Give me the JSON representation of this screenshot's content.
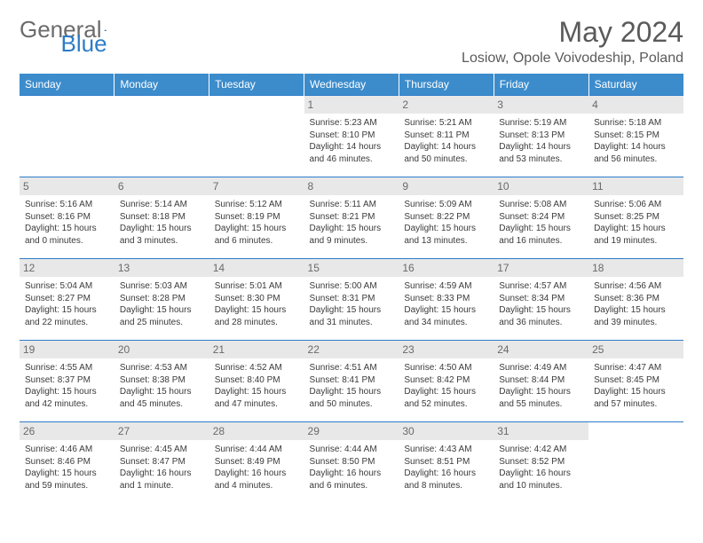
{
  "logo": {
    "part1": "General",
    "part2": "Blue"
  },
  "header": {
    "month_title": "May 2024",
    "location": "Losiow, Opole Voivodeship, Poland"
  },
  "styling": {
    "header_bg": "#3c8ccc",
    "header_text": "#ffffff",
    "border_color": "#2d7cc9",
    "daynum_bg": "#e8e8e8",
    "daynum_color": "#6a6a6a",
    "body_text": "#3a3a3a",
    "title_color": "#5a5a5a",
    "cell_fontsize": 10,
    "header_fontsize": 12,
    "title_fontsize": 32,
    "location_fontsize": 16
  },
  "weekdays": [
    "Sunday",
    "Monday",
    "Tuesday",
    "Wednesday",
    "Thursday",
    "Friday",
    "Saturday"
  ],
  "weeks": [
    [
      {
        "n": "",
        "sr": "",
        "ss": "",
        "dl": ""
      },
      {
        "n": "",
        "sr": "",
        "ss": "",
        "dl": ""
      },
      {
        "n": "",
        "sr": "",
        "ss": "",
        "dl": ""
      },
      {
        "n": "1",
        "sr": "Sunrise: 5:23 AM",
        "ss": "Sunset: 8:10 PM",
        "dl": "Daylight: 14 hours and 46 minutes."
      },
      {
        "n": "2",
        "sr": "Sunrise: 5:21 AM",
        "ss": "Sunset: 8:11 PM",
        "dl": "Daylight: 14 hours and 50 minutes."
      },
      {
        "n": "3",
        "sr": "Sunrise: 5:19 AM",
        "ss": "Sunset: 8:13 PM",
        "dl": "Daylight: 14 hours and 53 minutes."
      },
      {
        "n": "4",
        "sr": "Sunrise: 5:18 AM",
        "ss": "Sunset: 8:15 PM",
        "dl": "Daylight: 14 hours and 56 minutes."
      }
    ],
    [
      {
        "n": "5",
        "sr": "Sunrise: 5:16 AM",
        "ss": "Sunset: 8:16 PM",
        "dl": "Daylight: 15 hours and 0 minutes."
      },
      {
        "n": "6",
        "sr": "Sunrise: 5:14 AM",
        "ss": "Sunset: 8:18 PM",
        "dl": "Daylight: 15 hours and 3 minutes."
      },
      {
        "n": "7",
        "sr": "Sunrise: 5:12 AM",
        "ss": "Sunset: 8:19 PM",
        "dl": "Daylight: 15 hours and 6 minutes."
      },
      {
        "n": "8",
        "sr": "Sunrise: 5:11 AM",
        "ss": "Sunset: 8:21 PM",
        "dl": "Daylight: 15 hours and 9 minutes."
      },
      {
        "n": "9",
        "sr": "Sunrise: 5:09 AM",
        "ss": "Sunset: 8:22 PM",
        "dl": "Daylight: 15 hours and 13 minutes."
      },
      {
        "n": "10",
        "sr": "Sunrise: 5:08 AM",
        "ss": "Sunset: 8:24 PM",
        "dl": "Daylight: 15 hours and 16 minutes."
      },
      {
        "n": "11",
        "sr": "Sunrise: 5:06 AM",
        "ss": "Sunset: 8:25 PM",
        "dl": "Daylight: 15 hours and 19 minutes."
      }
    ],
    [
      {
        "n": "12",
        "sr": "Sunrise: 5:04 AM",
        "ss": "Sunset: 8:27 PM",
        "dl": "Daylight: 15 hours and 22 minutes."
      },
      {
        "n": "13",
        "sr": "Sunrise: 5:03 AM",
        "ss": "Sunset: 8:28 PM",
        "dl": "Daylight: 15 hours and 25 minutes."
      },
      {
        "n": "14",
        "sr": "Sunrise: 5:01 AM",
        "ss": "Sunset: 8:30 PM",
        "dl": "Daylight: 15 hours and 28 minutes."
      },
      {
        "n": "15",
        "sr": "Sunrise: 5:00 AM",
        "ss": "Sunset: 8:31 PM",
        "dl": "Daylight: 15 hours and 31 minutes."
      },
      {
        "n": "16",
        "sr": "Sunrise: 4:59 AM",
        "ss": "Sunset: 8:33 PM",
        "dl": "Daylight: 15 hours and 34 minutes."
      },
      {
        "n": "17",
        "sr": "Sunrise: 4:57 AM",
        "ss": "Sunset: 8:34 PM",
        "dl": "Daylight: 15 hours and 36 minutes."
      },
      {
        "n": "18",
        "sr": "Sunrise: 4:56 AM",
        "ss": "Sunset: 8:36 PM",
        "dl": "Daylight: 15 hours and 39 minutes."
      }
    ],
    [
      {
        "n": "19",
        "sr": "Sunrise: 4:55 AM",
        "ss": "Sunset: 8:37 PM",
        "dl": "Daylight: 15 hours and 42 minutes."
      },
      {
        "n": "20",
        "sr": "Sunrise: 4:53 AM",
        "ss": "Sunset: 8:38 PM",
        "dl": "Daylight: 15 hours and 45 minutes."
      },
      {
        "n": "21",
        "sr": "Sunrise: 4:52 AM",
        "ss": "Sunset: 8:40 PM",
        "dl": "Daylight: 15 hours and 47 minutes."
      },
      {
        "n": "22",
        "sr": "Sunrise: 4:51 AM",
        "ss": "Sunset: 8:41 PM",
        "dl": "Daylight: 15 hours and 50 minutes."
      },
      {
        "n": "23",
        "sr": "Sunrise: 4:50 AM",
        "ss": "Sunset: 8:42 PM",
        "dl": "Daylight: 15 hours and 52 minutes."
      },
      {
        "n": "24",
        "sr": "Sunrise: 4:49 AM",
        "ss": "Sunset: 8:44 PM",
        "dl": "Daylight: 15 hours and 55 minutes."
      },
      {
        "n": "25",
        "sr": "Sunrise: 4:47 AM",
        "ss": "Sunset: 8:45 PM",
        "dl": "Daylight: 15 hours and 57 minutes."
      }
    ],
    [
      {
        "n": "26",
        "sr": "Sunrise: 4:46 AM",
        "ss": "Sunset: 8:46 PM",
        "dl": "Daylight: 15 hours and 59 minutes."
      },
      {
        "n": "27",
        "sr": "Sunrise: 4:45 AM",
        "ss": "Sunset: 8:47 PM",
        "dl": "Daylight: 16 hours and 1 minute."
      },
      {
        "n": "28",
        "sr": "Sunrise: 4:44 AM",
        "ss": "Sunset: 8:49 PM",
        "dl": "Daylight: 16 hours and 4 minutes."
      },
      {
        "n": "29",
        "sr": "Sunrise: 4:44 AM",
        "ss": "Sunset: 8:50 PM",
        "dl": "Daylight: 16 hours and 6 minutes."
      },
      {
        "n": "30",
        "sr": "Sunrise: 4:43 AM",
        "ss": "Sunset: 8:51 PM",
        "dl": "Daylight: 16 hours and 8 minutes."
      },
      {
        "n": "31",
        "sr": "Sunrise: 4:42 AM",
        "ss": "Sunset: 8:52 PM",
        "dl": "Daylight: 16 hours and 10 minutes."
      },
      {
        "n": "",
        "sr": "",
        "ss": "",
        "dl": ""
      }
    ]
  ]
}
